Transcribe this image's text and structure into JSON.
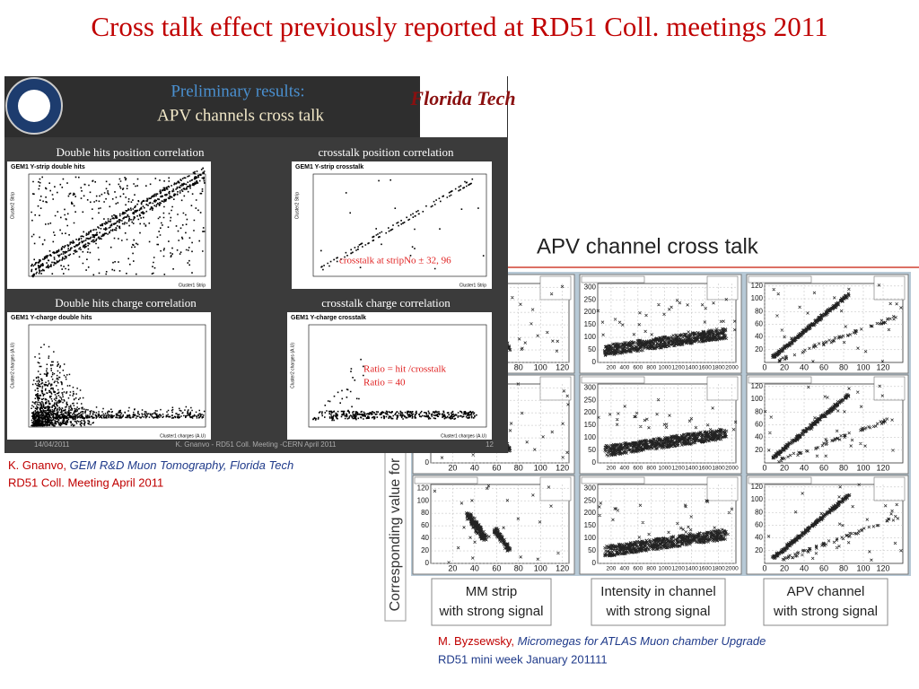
{
  "title": "Cross talk effect previously reported at RD51 Coll. meetings 2011",
  "left_slide": {
    "header": [
      "Preliminary results:",
      "APV channels cross talk"
    ],
    "logo": "Florida Tech",
    "panels": [
      {
        "heading": "Double hits position correlation",
        "plot_title": "GEM1 Y-strip double hits",
        "x_label": "Cluster1 Strip",
        "y_label": "Cluster2 Strip"
      },
      {
        "heading": "crosstalk position correlation",
        "plot_title": "GEM1 Y-strip crosstalk",
        "x_label": "Cluster1 Strip",
        "y_label": "Cluster2 Strip",
        "notes": [
          "crosstalk at stripNo ± 32, 96"
        ]
      },
      {
        "heading": "Double hits charge correlation",
        "plot_title": "GEM1 Y-charge double hits",
        "x_label": "Cluster1 charges (A.U)",
        "y_label": "Cluster2 charges (A.U)"
      },
      {
        "heading": "crosstalk charge correlation",
        "plot_title": "GEM1 Y-charge crosstalk",
        "x_label": "Cluster1 charges (A.U)",
        "y_label": "Cluster2 charges (A.U)",
        "notes": [
          "Ratio =  hit /crosstalk",
          "Ratio = 40"
        ]
      }
    ],
    "footer": [
      "14/04/2011",
      "K. Gnanvo - RD51 Coll. Meeting -CERN April 2011",
      "12"
    ]
  },
  "left_caption": {
    "author": "K. Gnanvo, ",
    "work": "GEM R&D Muon Tomography, Florida Tech",
    "line2": "RD51 Coll. Meeting April 2011"
  },
  "right_slide": {
    "heading": "APV channel cross talk",
    "side_label": "Corresponding value for",
    "columns": [
      {
        "xticks": [
          "20",
          "40",
          "60",
          "80",
          "100",
          "120"
        ],
        "yticks": [
          "0",
          "20",
          "40",
          "60",
          "80",
          "100",
          "120"
        ],
        "caption": [
          "MM strip",
          "with strong signal"
        ]
      },
      {
        "xticks": [
          "200",
          "400",
          "600",
          "800",
          "1000",
          "1200",
          "1400",
          "1600",
          "1800",
          "2000"
        ],
        "yticks": [
          "0",
          "50",
          "100",
          "150",
          "200",
          "250",
          "300"
        ],
        "caption": [
          "Intensity in channel",
          "with strong signal"
        ]
      },
      {
        "xticks": [
          "0",
          "20",
          "40",
          "60",
          "80",
          "100",
          "120"
        ],
        "yticks": [
          "20",
          "40",
          "60",
          "80",
          "100",
          "120"
        ],
        "caption": [
          "APV channel",
          "with strong signal"
        ]
      }
    ]
  },
  "right_caption": {
    "author": "M. Byzsewsky, ",
    "work": "Micromegas for ATLAS Muon chamber Upgrade",
    "line2": "RD51 mini week January 201111"
  }
}
